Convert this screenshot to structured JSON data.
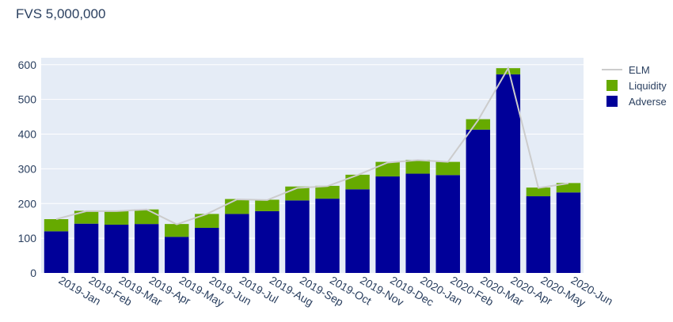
{
  "chart_data": {
    "type": "bar",
    "title": "FVS 5,000,000",
    "xlabel": "",
    "ylabel": "",
    "ylim": [
      0,
      620
    ],
    "yticks": [
      0,
      100,
      200,
      300,
      400,
      500,
      600
    ],
    "grid": true,
    "legend_position": "top-right",
    "categories": [
      "2019-Jan",
      "2019-Feb",
      "2019-Mar",
      "2019-Apr",
      "2019-May",
      "2019-Jun",
      "2019-Jul",
      "2019-Aug",
      "2019-Sep",
      "2019-Oct",
      "2019-Nov",
      "2019-Dec",
      "2020-Jan",
      "2020-Feb",
      "2020-Mar",
      "2020-Apr",
      "2020-May",
      "2020-Jun"
    ],
    "series": [
      {
        "name": "ELM",
        "kind": "line",
        "color": "#cccccc",
        "values": [
          155,
          178,
          178,
          183,
          140,
          170,
          212,
          210,
          245,
          250,
          282,
          318,
          325,
          320,
          440,
          590,
          245,
          258
        ]
      },
      {
        "name": "Liquidity",
        "kind": "bar",
        "color": "#66aa00",
        "values": [
          35,
          37,
          39,
          42,
          37,
          40,
          43,
          33,
          40,
          37,
          42,
          42,
          40,
          38,
          30,
          18,
          25,
          27
        ]
      },
      {
        "name": "Adverse",
        "kind": "bar",
        "color": "#000099",
        "values": [
          120,
          142,
          139,
          141,
          104,
          130,
          170,
          178,
          209,
          214,
          241,
          278,
          286,
          282,
          413,
          572,
          221,
          232
        ]
      }
    ],
    "stacked": true
  }
}
